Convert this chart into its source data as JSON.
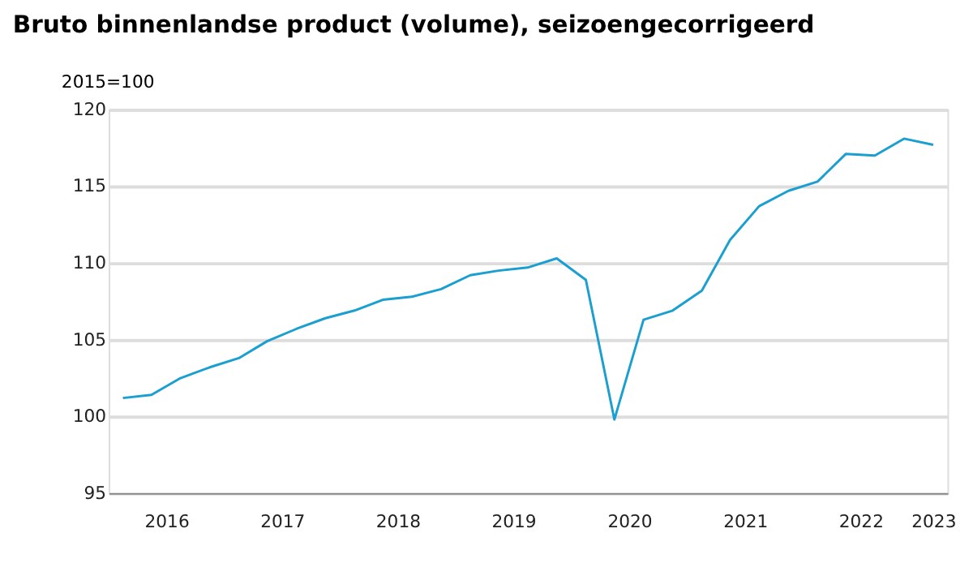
{
  "chart_data": {
    "type": "line",
    "title": "Bruto binnenlandse product (volume), seizoengecorrigeerd",
    "ylabel": "2015=100",
    "x": [
      "2016-02-15",
      "2016-05-15",
      "2016-08-15",
      "2016-11-15",
      "2017-02-15",
      "2017-05-15",
      "2017-08-15",
      "2017-11-15",
      "2018-02-15",
      "2018-05-15",
      "2018-08-15",
      "2018-11-15",
      "2019-02-15",
      "2019-05-15",
      "2019-08-15",
      "2019-11-15",
      "2020-02-15",
      "2020-05-15",
      "2020-08-15",
      "2020-11-15",
      "2021-02-15",
      "2021-05-15",
      "2021-08-15",
      "2021-11-15",
      "2022-02-15",
      "2022-05-15",
      "2022-08-15",
      "2022-11-15",
      "2023-02-15"
    ],
    "series": [
      {
        "color": "#1a9fd0",
        "values": [
          101.2,
          101.4,
          102.5,
          103.2,
          103.8,
          104.9,
          105.7,
          106.4,
          106.9,
          107.6,
          107.8,
          108.3,
          109.2,
          109.5,
          109.7,
          110.3,
          108.9,
          99.8,
          106.3,
          106.9,
          108.2,
          111.5,
          113.7,
          114.7,
          115.3,
          117.1,
          117.0,
          118.1,
          117.7
        ]
      }
    ],
    "xlim": [
      "2016-01-01",
      "2023-04-01"
    ],
    "xticks": [
      {
        "value": "2016-07-01",
        "label": "2016"
      },
      {
        "value": "2017-07-01",
        "label": "2017"
      },
      {
        "value": "2018-07-01",
        "label": "2018"
      },
      {
        "value": "2019-07-01",
        "label": "2019"
      },
      {
        "value": "2020-07-01",
        "label": "2020"
      },
      {
        "value": "2021-07-01",
        "label": "2021"
      },
      {
        "value": "2022-07-01",
        "label": "2022"
      },
      {
        "value": "2023-02-15",
        "label": "2023"
      }
    ],
    "ylim": [
      95,
      120
    ],
    "yticks": [
      95,
      100,
      105,
      110,
      115,
      120
    ],
    "grid": "y",
    "marker": "none",
    "line_style": "solid"
  }
}
